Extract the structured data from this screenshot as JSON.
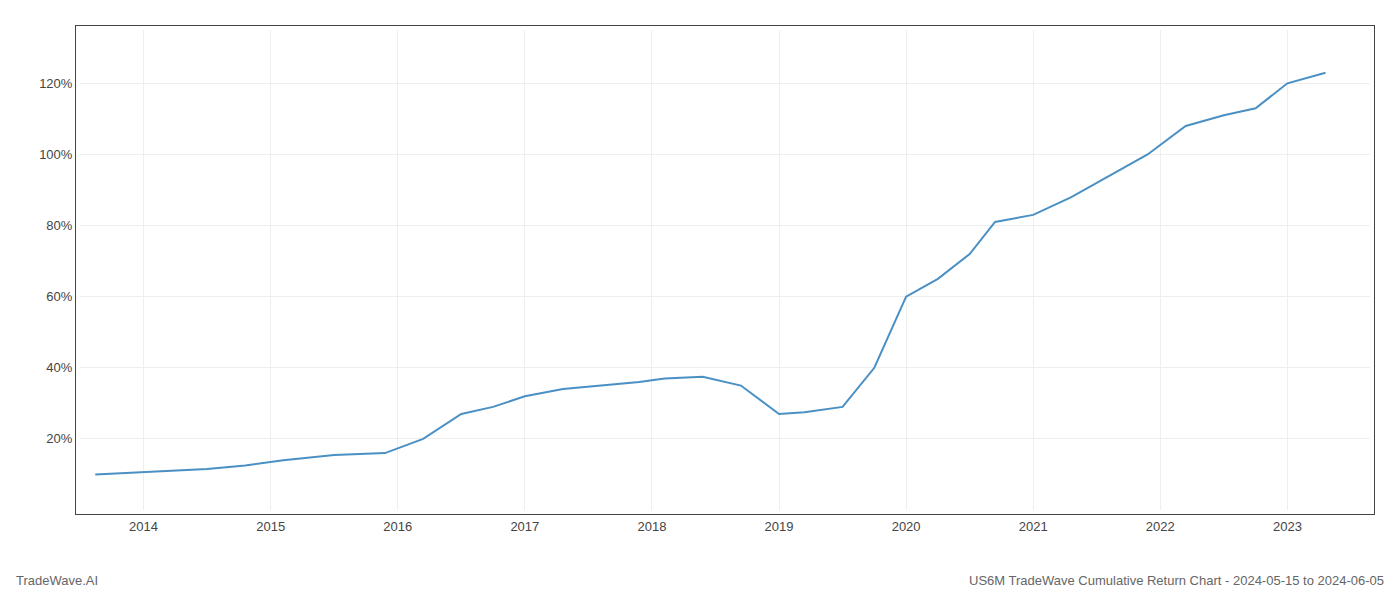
{
  "chart_data": {
    "type": "line",
    "x": [
      2013.62,
      2013.9,
      2014.2,
      2014.5,
      2014.8,
      2015.1,
      2015.5,
      2015.9,
      2016.2,
      2016.5,
      2016.75,
      2017.0,
      2017.3,
      2017.6,
      2017.9,
      2018.1,
      2018.4,
      2018.7,
      2019.0,
      2019.2,
      2019.5,
      2019.75,
      2020.0,
      2020.25,
      2020.5,
      2020.7,
      2021.0,
      2021.3,
      2021.6,
      2021.9,
      2022.2,
      2022.5,
      2022.75,
      2023.0,
      2023.3
    ],
    "values": [
      10,
      10.5,
      11,
      11.5,
      12.5,
      14,
      15.5,
      16,
      20,
      27,
      29,
      32,
      34,
      35,
      36,
      37,
      37.5,
      35,
      27,
      27.5,
      29,
      40,
      60,
      65,
      72,
      81,
      83,
      88,
      94,
      100,
      108,
      111,
      113,
      120,
      123
    ],
    "color": "#4a90c4",
    "xlim": [
      2013.5,
      2023.65
    ],
    "ylim": [
      0,
      135
    ],
    "xticks": [
      2014,
      2015,
      2016,
      2017,
      2018,
      2019,
      2020,
      2021,
      2022,
      2023
    ],
    "yticks": [
      {
        "value": 20,
        "label": "20%"
      },
      {
        "value": 40,
        "label": "40%"
      },
      {
        "value": 60,
        "label": "60%"
      },
      {
        "value": 80,
        "label": "80%"
      },
      {
        "value": 100,
        "label": "100%"
      },
      {
        "value": 120,
        "label": "120%"
      }
    ],
    "grid": true,
    "annotations": [
      "TradeWave.AI",
      "US6M TradeWave Cumulative Return Chart - 2024-05-15 to 2024-06-05"
    ]
  }
}
